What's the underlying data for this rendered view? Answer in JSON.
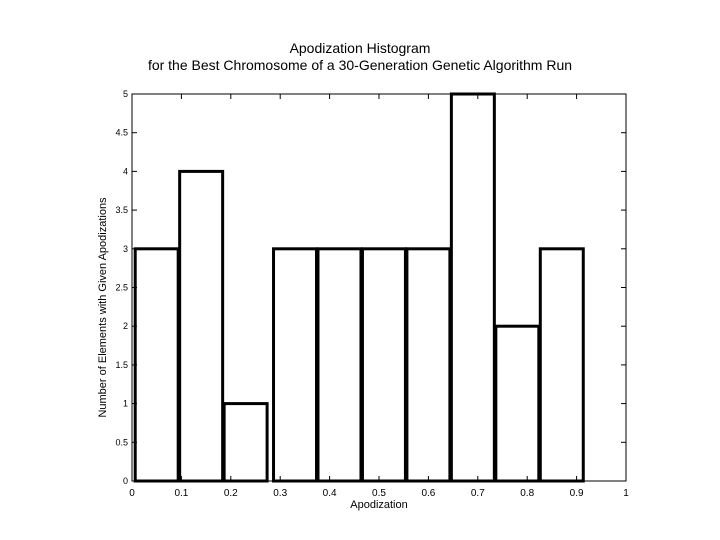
{
  "chart_data": {
    "type": "bar",
    "title": "Apodization Histogram",
    "subtitle": "for the Best Chromosome of a 30-Generation Genetic Algorithm Run",
    "xlabel": "Apodization",
    "ylabel": "Number of Elements with Given Apodizations",
    "bin_width": 0.1,
    "bins": [
      {
        "x": 0.05,
        "value": 3
      },
      {
        "x": 0.14,
        "value": 4
      },
      {
        "x": 0.23,
        "value": 1
      },
      {
        "x": 0.33,
        "value": 3
      },
      {
        "x": 0.42,
        "value": 3
      },
      {
        "x": 0.51,
        "value": 3
      },
      {
        "x": 0.6,
        "value": 3
      },
      {
        "x": 0.69,
        "value": 5
      },
      {
        "x": 0.78,
        "value": 2
      },
      {
        "x": 0.87,
        "value": 3
      }
    ],
    "xlim": [
      0,
      1
    ],
    "ylim": [
      0,
      5
    ],
    "xticks": [
      0,
      0.1,
      0.2,
      0.3,
      0.4,
      0.5,
      0.6,
      0.7,
      0.8,
      0.9,
      1
    ],
    "xtick_labels": [
      "0",
      "0.1",
      "0.2",
      "0.3",
      "0.4",
      "0.5",
      "0.6",
      "0.7",
      "0.8",
      "0.9",
      "1"
    ],
    "yticks": [
      0,
      0.5,
      1,
      1.5,
      2,
      2.5,
      3,
      3.5,
      4,
      4.5,
      5
    ],
    "ytick_labels": [
      "0",
      "0.5",
      "1",
      "1.5",
      "2",
      "2.5",
      "3",
      "3.5",
      "4",
      "4.5",
      "5"
    ],
    "grid": false,
    "bar_fill": "#ffffff",
    "bar_stroke": "#000000"
  }
}
